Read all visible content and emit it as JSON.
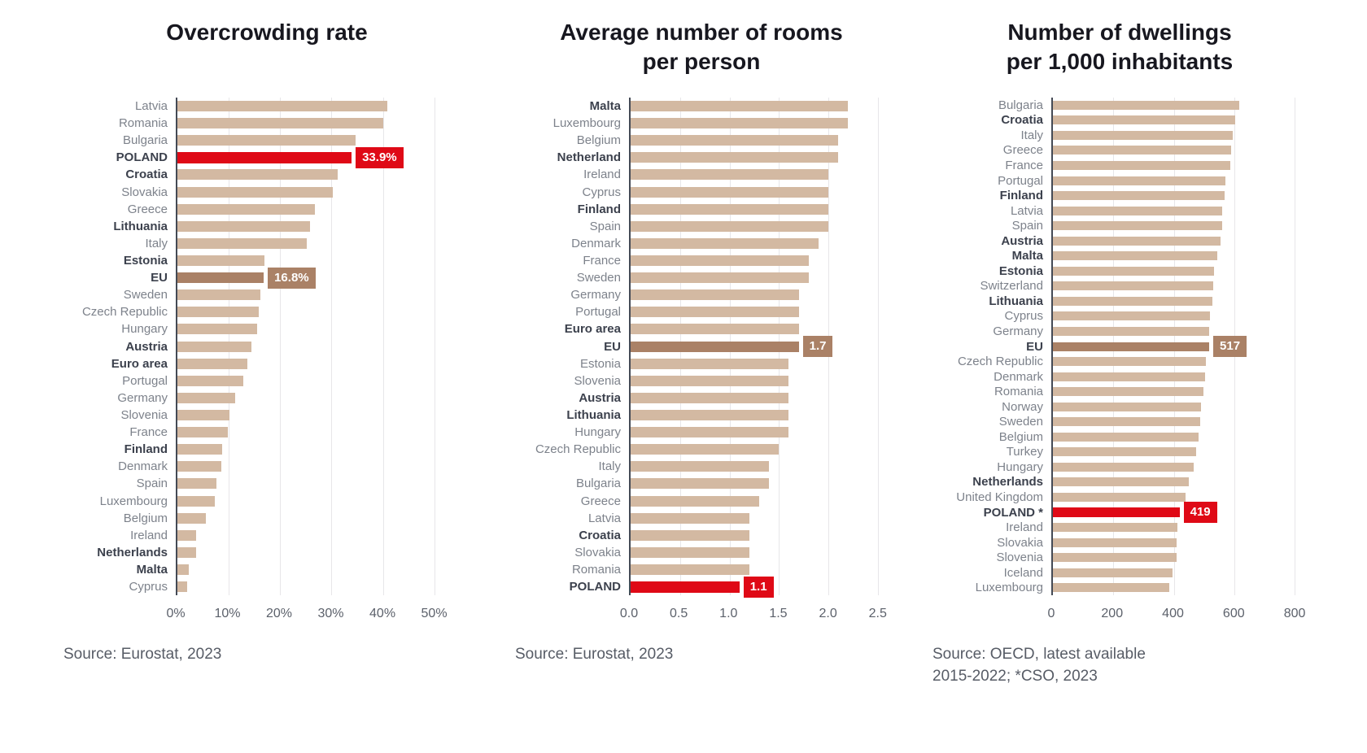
{
  "colors": {
    "bar": "#d3b9a2",
    "eu_highlight": "#aa8166",
    "poland_highlight": "#df0916",
    "axis": "#444a55",
    "gridline": "#e7e6e9"
  },
  "chart_data": [
    {
      "id": 1,
      "type": "bar",
      "orientation": "horizontal",
      "title": "Overcrowding rate",
      "title_lines": [
        "Overcrowding rate"
      ],
      "source_lines": [
        "Source: Eurostat, 2023"
      ],
      "x_max": 57,
      "x_ticks": [
        {
          "pos": 0,
          "label": "0%"
        },
        {
          "pos": 10,
          "label": "10%"
        },
        {
          "pos": 20,
          "label": "20%"
        },
        {
          "pos": 30,
          "label": "30%"
        },
        {
          "pos": 40,
          "label": "40%"
        },
        {
          "pos": 50,
          "label": "50%"
        }
      ],
      "rows": [
        {
          "label": "Latvia",
          "value": 40.9,
          "bold": false,
          "highlight": null,
          "value_label": null
        },
        {
          "label": "Romania",
          "value": 40.0,
          "bold": false,
          "highlight": null,
          "value_label": null
        },
        {
          "label": "Bulgaria",
          "value": 34.7,
          "bold": false,
          "highlight": null,
          "value_label": null
        },
        {
          "label": "POLAND",
          "value": 33.9,
          "bold": true,
          "highlight": "red",
          "value_label": "33.9%"
        },
        {
          "label": "Croatia",
          "value": 31.2,
          "bold": true,
          "highlight": null,
          "value_label": null
        },
        {
          "label": "Slovakia",
          "value": 30.3,
          "bold": false,
          "highlight": null,
          "value_label": null
        },
        {
          "label": "Greece",
          "value": 26.7,
          "bold": false,
          "highlight": null,
          "value_label": null
        },
        {
          "label": "Lithuania",
          "value": 25.8,
          "bold": true,
          "highlight": null,
          "value_label": null
        },
        {
          "label": "Italy",
          "value": 25.2,
          "bold": false,
          "highlight": null,
          "value_label": null
        },
        {
          "label": "Estonia",
          "value": 17.0,
          "bold": true,
          "highlight": null,
          "value_label": null
        },
        {
          "label": "EU",
          "value": 16.8,
          "bold": true,
          "highlight": "brown",
          "value_label": "16.8%"
        },
        {
          "label": "Sweden",
          "value": 16.2,
          "bold": false,
          "highlight": null,
          "value_label": null
        },
        {
          "label": "Czech Republic",
          "value": 15.8,
          "bold": false,
          "highlight": null,
          "value_label": null
        },
        {
          "label": "Hungary",
          "value": 15.5,
          "bold": false,
          "highlight": null,
          "value_label": null
        },
        {
          "label": "Austria",
          "value": 14.4,
          "bold": true,
          "highlight": null,
          "value_label": null
        },
        {
          "label": "Euro area",
          "value": 13.6,
          "bold": true,
          "highlight": null,
          "value_label": null
        },
        {
          "label": "Portugal",
          "value": 12.8,
          "bold": false,
          "highlight": null,
          "value_label": null
        },
        {
          "label": "Germany",
          "value": 11.3,
          "bold": false,
          "highlight": null,
          "value_label": null
        },
        {
          "label": "Slovenia",
          "value": 10.2,
          "bold": false,
          "highlight": null,
          "value_label": null
        },
        {
          "label": "France",
          "value": 9.8,
          "bold": false,
          "highlight": null,
          "value_label": null
        },
        {
          "label": "Finland",
          "value": 8.7,
          "bold": true,
          "highlight": null,
          "value_label": null
        },
        {
          "label": "Denmark",
          "value": 8.5,
          "bold": false,
          "highlight": null,
          "value_label": null
        },
        {
          "label": "Spain",
          "value": 7.6,
          "bold": false,
          "highlight": null,
          "value_label": null
        },
        {
          "label": "Luxembourg",
          "value": 7.3,
          "bold": false,
          "highlight": null,
          "value_label": null
        },
        {
          "label": "Belgium",
          "value": 5.6,
          "bold": false,
          "highlight": null,
          "value_label": null
        },
        {
          "label": "Ireland",
          "value": 3.7,
          "bold": false,
          "highlight": null,
          "value_label": null
        },
        {
          "label": "Netherlands",
          "value": 3.6,
          "bold": true,
          "highlight": null,
          "value_label": null
        },
        {
          "label": "Malta",
          "value": 2.2,
          "bold": true,
          "highlight": null,
          "value_label": null
        },
        {
          "label": "Cyprus",
          "value": 1.9,
          "bold": false,
          "highlight": null,
          "value_label": null
        }
      ]
    },
    {
      "id": 2,
      "type": "bar",
      "orientation": "horizontal",
      "title": "Average number of rooms per person",
      "title_lines": [
        "Average number of rooms",
        "per person"
      ],
      "source_lines": [
        "Source: Eurostat, 2023"
      ],
      "x_max": 2.6,
      "x_ticks": [
        {
          "pos": 0,
          "label": "0.0"
        },
        {
          "pos": 0.5,
          "label": "0.5"
        },
        {
          "pos": 1.0,
          "label": "1.0"
        },
        {
          "pos": 1.5,
          "label": "1.5"
        },
        {
          "pos": 2.0,
          "label": "2.0"
        },
        {
          "pos": 2.5,
          "label": "2.5"
        }
      ],
      "rows": [
        {
          "label": "Malta",
          "value": 2.2,
          "bold": true,
          "highlight": null,
          "value_label": null
        },
        {
          "label": "Luxembourg",
          "value": 2.2,
          "bold": false,
          "highlight": null,
          "value_label": null
        },
        {
          "label": "Belgium",
          "value": 2.1,
          "bold": false,
          "highlight": null,
          "value_label": null
        },
        {
          "label": "Netherland",
          "value": 2.1,
          "bold": true,
          "highlight": null,
          "value_label": null
        },
        {
          "label": "Ireland",
          "value": 2.0,
          "bold": false,
          "highlight": null,
          "value_label": null
        },
        {
          "label": "Cyprus",
          "value": 2.0,
          "bold": false,
          "highlight": null,
          "value_label": null
        },
        {
          "label": "Finland",
          "value": 2.0,
          "bold": true,
          "highlight": null,
          "value_label": null
        },
        {
          "label": "Spain",
          "value": 2.0,
          "bold": false,
          "highlight": null,
          "value_label": null
        },
        {
          "label": "Denmark",
          "value": 1.9,
          "bold": false,
          "highlight": null,
          "value_label": null
        },
        {
          "label": "France",
          "value": 1.8,
          "bold": false,
          "highlight": null,
          "value_label": null
        },
        {
          "label": "Sweden",
          "value": 1.8,
          "bold": false,
          "highlight": null,
          "value_label": null
        },
        {
          "label": "Germany",
          "value": 1.7,
          "bold": false,
          "highlight": null,
          "value_label": null
        },
        {
          "label": "Portugal",
          "value": 1.7,
          "bold": false,
          "highlight": null,
          "value_label": null
        },
        {
          "label": "Euro area",
          "value": 1.7,
          "bold": true,
          "highlight": null,
          "value_label": null
        },
        {
          "label": "EU",
          "value": 1.7,
          "bold": true,
          "highlight": "brown",
          "value_label": "1.7"
        },
        {
          "label": "Estonia",
          "value": 1.6,
          "bold": false,
          "highlight": null,
          "value_label": null
        },
        {
          "label": "Slovenia",
          "value": 1.6,
          "bold": false,
          "highlight": null,
          "value_label": null
        },
        {
          "label": "Austria",
          "value": 1.6,
          "bold": true,
          "highlight": null,
          "value_label": null
        },
        {
          "label": "Lithuania",
          "value": 1.6,
          "bold": true,
          "highlight": null,
          "value_label": null
        },
        {
          "label": "Hungary",
          "value": 1.6,
          "bold": false,
          "highlight": null,
          "value_label": null
        },
        {
          "label": "Czech Republic",
          "value": 1.5,
          "bold": false,
          "highlight": null,
          "value_label": null
        },
        {
          "label": "Italy",
          "value": 1.4,
          "bold": false,
          "highlight": null,
          "value_label": null
        },
        {
          "label": "Bulgaria",
          "value": 1.4,
          "bold": false,
          "highlight": null,
          "value_label": null
        },
        {
          "label": "Greece",
          "value": 1.3,
          "bold": false,
          "highlight": null,
          "value_label": null
        },
        {
          "label": "Latvia",
          "value": 1.2,
          "bold": false,
          "highlight": null,
          "value_label": null
        },
        {
          "label": "Croatia",
          "value": 1.2,
          "bold": true,
          "highlight": null,
          "value_label": null
        },
        {
          "label": "Slovakia",
          "value": 1.2,
          "bold": false,
          "highlight": null,
          "value_label": null
        },
        {
          "label": "Romania",
          "value": 1.2,
          "bold": false,
          "highlight": null,
          "value_label": null
        },
        {
          "label": "POLAND",
          "value": 1.1,
          "bold": true,
          "highlight": "red",
          "value_label": "1.1"
        }
      ]
    },
    {
      "id": 3,
      "type": "bar",
      "orientation": "horizontal",
      "title": "Number of dwellings per 1,000 inhabitants",
      "title_lines": [
        "Number of dwellings",
        "per 1,000 inhabitants"
      ],
      "source_lines": [
        "Source: OECD, latest available",
        "2015-2022; *CSO, 2023"
      ],
      "x_max": 840,
      "x_ticks": [
        {
          "pos": 0,
          "label": "0"
        },
        {
          "pos": 200,
          "label": "200"
        },
        {
          "pos": 400,
          "label": "400"
        },
        {
          "pos": 600,
          "label": "600"
        },
        {
          "pos": 800,
          "label": "800"
        }
      ],
      "rows": [
        {
          "label": "Bulgaria",
          "value": 617,
          "bold": false,
          "highlight": null,
          "value_label": null
        },
        {
          "label": "Croatia",
          "value": 604,
          "bold": true,
          "highlight": null,
          "value_label": null
        },
        {
          "label": "Italy",
          "value": 596,
          "bold": false,
          "highlight": null,
          "value_label": null
        },
        {
          "label": "Greece",
          "value": 590,
          "bold": false,
          "highlight": null,
          "value_label": null
        },
        {
          "label": "France",
          "value": 587,
          "bold": false,
          "highlight": null,
          "value_label": null
        },
        {
          "label": "Portugal",
          "value": 570,
          "bold": false,
          "highlight": null,
          "value_label": null
        },
        {
          "label": "Finland",
          "value": 569,
          "bold": true,
          "highlight": null,
          "value_label": null
        },
        {
          "label": "Latvia",
          "value": 561,
          "bold": false,
          "highlight": null,
          "value_label": null
        },
        {
          "label": "Spain",
          "value": 559,
          "bold": false,
          "highlight": null,
          "value_label": null
        },
        {
          "label": "Austria",
          "value": 554,
          "bold": true,
          "highlight": null,
          "value_label": null
        },
        {
          "label": "Malta",
          "value": 545,
          "bold": true,
          "highlight": null,
          "value_label": null
        },
        {
          "label": "Estonia",
          "value": 534,
          "bold": true,
          "highlight": null,
          "value_label": null
        },
        {
          "label": "Switzerland",
          "value": 531,
          "bold": false,
          "highlight": null,
          "value_label": null
        },
        {
          "label": "Lithuania",
          "value": 527,
          "bold": true,
          "highlight": null,
          "value_label": null
        },
        {
          "label": "Cyprus",
          "value": 519,
          "bold": false,
          "highlight": null,
          "value_label": null
        },
        {
          "label": "Germany",
          "value": 518,
          "bold": false,
          "highlight": null,
          "value_label": null
        },
        {
          "label": "EU",
          "value": 517,
          "bold": true,
          "highlight": "brown",
          "value_label": "517"
        },
        {
          "label": "Czech Republic",
          "value": 506,
          "bold": false,
          "highlight": null,
          "value_label": null
        },
        {
          "label": "Denmark",
          "value": 503,
          "bold": false,
          "highlight": null,
          "value_label": null
        },
        {
          "label": "Romania",
          "value": 499,
          "bold": false,
          "highlight": null,
          "value_label": null
        },
        {
          "label": "Norway",
          "value": 489,
          "bold": false,
          "highlight": null,
          "value_label": null
        },
        {
          "label": "Sweden",
          "value": 488,
          "bold": false,
          "highlight": null,
          "value_label": null
        },
        {
          "label": "Belgium",
          "value": 482,
          "bold": false,
          "highlight": null,
          "value_label": null
        },
        {
          "label": "Turkey",
          "value": 474,
          "bold": false,
          "highlight": null,
          "value_label": null
        },
        {
          "label": "Hungary",
          "value": 467,
          "bold": false,
          "highlight": null,
          "value_label": null
        },
        {
          "label": "Netherlands",
          "value": 450,
          "bold": true,
          "highlight": null,
          "value_label": null
        },
        {
          "label": "United Kingdom",
          "value": 439,
          "bold": false,
          "highlight": null,
          "value_label": null
        },
        {
          "label": "POLAND *",
          "value": 419,
          "bold": true,
          "highlight": "red",
          "value_label": "419"
        },
        {
          "label": "Ireland",
          "value": 413,
          "bold": false,
          "highlight": null,
          "value_label": null
        },
        {
          "label": "Slovakia",
          "value": 409,
          "bold": false,
          "highlight": null,
          "value_label": null
        },
        {
          "label": "Slovenia",
          "value": 408,
          "bold": false,
          "highlight": null,
          "value_label": null
        },
        {
          "label": "Iceland",
          "value": 397,
          "bold": false,
          "highlight": null,
          "value_label": null
        },
        {
          "label": "Luxembourg",
          "value": 386,
          "bold": false,
          "highlight": null,
          "value_label": null
        }
      ]
    }
  ]
}
